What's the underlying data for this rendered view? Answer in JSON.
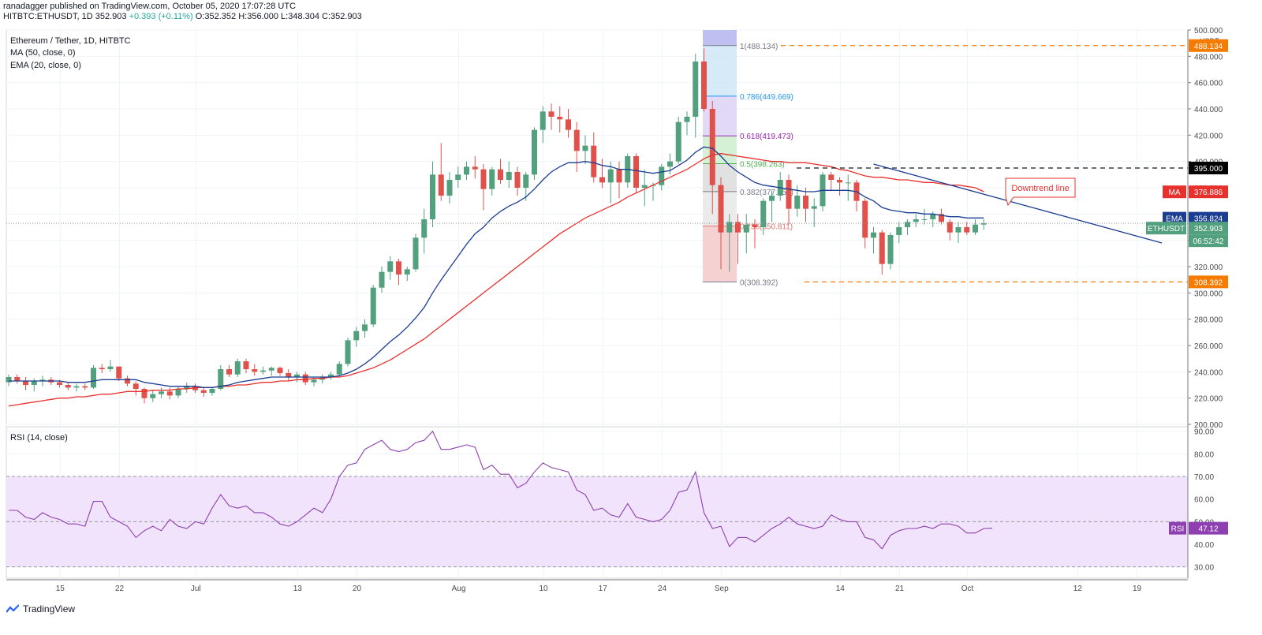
{
  "header": {
    "line1": "ranadagger published on TradingView.com, October 05, 2020 17:07:28 UTC",
    "symbol": "HITBTC:ETHUSDT, 1D",
    "price": "352.903",
    "change": "+0.393 (+0.11%)",
    "ohlc": "O:352.352 H:356.000 L:348.304 C:352.903"
  },
  "legend": {
    "title": "Ethereum / Tether, 1D, HITBTC",
    "ma": "MA (50, close, 0)",
    "ema": "EMA (20, close, 0)",
    "rsi": "RSI (14, close)"
  },
  "axis": {
    "currency": "USDT",
    "price_ticks": [
      "500.000",
      "480.000",
      "460.000",
      "440.000",
      "420.000",
      "400.000",
      "380.000",
      "360.000",
      "340.000",
      "320.000",
      "300.000",
      "280.000",
      "260.000",
      "240.000",
      "220.000",
      "200.000"
    ],
    "rsi_ticks": [
      "90.00",
      "80.00",
      "70.00",
      "60.00",
      "50.00",
      "40.00",
      "30.00"
    ],
    "date_ticks": [
      "15",
      "22",
      "Jul",
      "13",
      "20",
      "Aug",
      "10",
      "17",
      "24",
      "Sep",
      "14",
      "21",
      "Oct",
      "12",
      "19"
    ]
  },
  "price_labels": {
    "high": "488.134",
    "resistance": "395.000",
    "ma": "376.886",
    "ma_label": "MA",
    "ema": "356.824",
    "ema_label": "EMA",
    "last": "352.903",
    "last_label": "ETHUSDT",
    "countdown": "06:52:42",
    "low": "308.392",
    "rsi": "47.12",
    "rsi_label": "RSI"
  },
  "fib": [
    {
      "label": "1(488.134)",
      "value": 488.134
    },
    {
      "label": "0.786(449.669)",
      "value": 449.669
    },
    {
      "label": "0.618(419.473)",
      "value": 419.473
    },
    {
      "label": "0.5(398.263)",
      "value": 398.263
    },
    {
      "label": "0.382(377.053)",
      "value": 377.053
    },
    {
      "label": "0.236(350.811)",
      "value": 350.811
    },
    {
      "label": "0(308.392)",
      "value": 308.392
    }
  ],
  "annotation": {
    "downtrend": "Downtrend line"
  },
  "colors": {
    "up": "#53a07e",
    "down": "#e0514b",
    "ema": "#1b3d92",
    "ma": "#e8312d",
    "rsi": "#8e3fb0",
    "rsi_band": "#f1e3fb"
  },
  "footer": {
    "brand": "TradingView"
  },
  "chart_data": {
    "type": "candlestick",
    "price_range": [
      200,
      500
    ],
    "rsi_range": [
      25,
      92
    ],
    "candles": [
      [
        232,
        238,
        229,
        236
      ],
      [
        236,
        238,
        231,
        233
      ],
      [
        233,
        236,
        226,
        230
      ],
      [
        230,
        235,
        225,
        233
      ],
      [
        233,
        237,
        229,
        234
      ],
      [
        234,
        236,
        230,
        232
      ],
      [
        232,
        234,
        228,
        230
      ],
      [
        230,
        232,
        226,
        228
      ],
      [
        228,
        231,
        225,
        229
      ],
      [
        229,
        231,
        226,
        228
      ],
      [
        228,
        245,
        227,
        243
      ],
      [
        243,
        246,
        239,
        242
      ],
      [
        242,
        249,
        240,
        244
      ],
      [
        244,
        244,
        233,
        235
      ],
      [
        235,
        237,
        229,
        231
      ],
      [
        231,
        233,
        222,
        227
      ],
      [
        227,
        228,
        216,
        220
      ],
      [
        220,
        226,
        217,
        223
      ],
      [
        223,
        228,
        220,
        225
      ],
      [
        225,
        228,
        219,
        222
      ],
      [
        222,
        229,
        220,
        227
      ],
      [
        227,
        232,
        224,
        229
      ],
      [
        229,
        231,
        224,
        226
      ],
      [
        226,
        228,
        221,
        224
      ],
      [
        224,
        228,
        222,
        227
      ],
      [
        227,
        245,
        226,
        242
      ],
      [
        242,
        245,
        236,
        238
      ],
      [
        238,
        250,
        236,
        248
      ],
      [
        248,
        250,
        239,
        242
      ],
      [
        242,
        246,
        237,
        240
      ],
      [
        240,
        244,
        238,
        241
      ],
      [
        241,
        244,
        237,
        243
      ],
      [
        243,
        244,
        237,
        239
      ],
      [
        239,
        242,
        233,
        236
      ],
      [
        236,
        240,
        232,
        238
      ],
      [
        238,
        240,
        230,
        232
      ],
      [
        232,
        236,
        229,
        234
      ],
      [
        234,
        238,
        231,
        236
      ],
      [
        236,
        240,
        234,
        238
      ],
      [
        238,
        248,
        236,
        246
      ],
      [
        246,
        266,
        244,
        264
      ],
      [
        264,
        274,
        259,
        271
      ],
      [
        271,
        280,
        266,
        276
      ],
      [
        276,
        306,
        274,
        304
      ],
      [
        304,
        320,
        300,
        316
      ],
      [
        316,
        328,
        310,
        324
      ],
      [
        324,
        326,
        306,
        314
      ],
      [
        314,
        320,
        309,
        318
      ],
      [
        318,
        345,
        316,
        342
      ],
      [
        342,
        364,
        330,
        356
      ],
      [
        356,
        400,
        350,
        390
      ],
      [
        390,
        414,
        370,
        374
      ],
      [
        374,
        392,
        368,
        386
      ],
      [
        386,
        396,
        380,
        390
      ],
      [
        390,
        400,
        386,
        396
      ],
      [
        396,
        404,
        387,
        394
      ],
      [
        394,
        398,
        363,
        379
      ],
      [
        379,
        396,
        374,
        394
      ],
      [
        394,
        402,
        383,
        386
      ],
      [
        386,
        400,
        380,
        392
      ],
      [
        392,
        396,
        374,
        380
      ],
      [
        380,
        392,
        370,
        390
      ],
      [
        390,
        426,
        386,
        424
      ],
      [
        424,
        442,
        414,
        438
      ],
      [
        438,
        444,
        424,
        434
      ],
      [
        434,
        442,
        422,
        432
      ],
      [
        432,
        440,
        418,
        424
      ],
      [
        424,
        430,
        392,
        408
      ],
      [
        408,
        420,
        398,
        412
      ],
      [
        412,
        422,
        384,
        388
      ],
      [
        388,
        402,
        380,
        384
      ],
      [
        384,
        400,
        368,
        394
      ],
      [
        394,
        400,
        372,
        384
      ],
      [
        384,
        406,
        380,
        404
      ],
      [
        404,
        406,
        376,
        380
      ],
      [
        380,
        394,
        366,
        382
      ],
      [
        382,
        384,
        370,
        382
      ],
      [
        382,
        398,
        378,
        396
      ],
      [
        396,
        406,
        390,
        400
      ],
      [
        400,
        434,
        398,
        430
      ],
      [
        430,
        438,
        420,
        434
      ],
      [
        434,
        482,
        418,
        476
      ],
      [
        476,
        486,
        438,
        440
      ],
      [
        440,
        446,
        360,
        382
      ],
      [
        382,
        388,
        318,
        346
      ],
      [
        346,
        360,
        316,
        354
      ],
      [
        354,
        360,
        322,
        346
      ],
      [
        346,
        360,
        330,
        352
      ],
      [
        352,
        356,
        334,
        350
      ],
      [
        350,
        372,
        344,
        370
      ],
      [
        370,
        378,
        354,
        374
      ],
      [
        374,
        392,
        370,
        386
      ],
      [
        386,
        390,
        352,
        364
      ],
      [
        364,
        382,
        358,
        374
      ],
      [
        374,
        380,
        354,
        364
      ],
      [
        364,
        372,
        350,
        366
      ],
      [
        366,
        392,
        362,
        390
      ],
      [
        390,
        392,
        378,
        386
      ],
      [
        386,
        388,
        374,
        384
      ],
      [
        384,
        390,
        370,
        384
      ],
      [
        384,
        386,
        362,
        370
      ],
      [
        370,
        372,
        334,
        342
      ],
      [
        342,
        350,
        330,
        346
      ],
      [
        346,
        348,
        314,
        322
      ],
      [
        322,
        346,
        318,
        344
      ],
      [
        344,
        354,
        338,
        350
      ],
      [
        350,
        356,
        344,
        354
      ],
      [
        354,
        360,
        350,
        356
      ],
      [
        356,
        364,
        352,
        356
      ],
      [
        356,
        362,
        350,
        360
      ],
      [
        360,
        364,
        352,
        354
      ],
      [
        354,
        356,
        340,
        346
      ],
      [
        346,
        354,
        338,
        350
      ],
      [
        350,
        354,
        344,
        346
      ],
      [
        346,
        356,
        344,
        352
      ],
      [
        352,
        356,
        348,
        353
      ]
    ],
    "ema20": [
      233,
      233,
      233,
      233,
      233,
      233,
      233,
      232,
      232,
      232,
      233,
      234,
      234,
      234,
      234,
      234,
      232,
      231,
      230,
      229,
      229,
      229,
      229,
      228,
      228,
      229,
      230,
      232,
      233,
      234,
      235,
      236,
      236,
      236,
      236,
      236,
      236,
      236,
      236,
      237,
      239,
      242,
      246,
      251,
      257,
      263,
      268,
      274,
      281,
      289,
      300,
      310,
      319,
      328,
      337,
      345,
      350,
      357,
      362,
      366,
      369,
      373,
      379,
      386,
      392,
      396,
      399,
      399,
      400,
      399,
      397,
      396,
      394,
      394,
      393,
      392,
      391,
      392,
      393,
      397,
      401,
      407,
      411,
      410,
      404,
      397,
      392,
      388,
      384,
      382,
      381,
      380,
      379,
      378,
      377,
      377,
      378,
      378,
      378,
      378,
      377,
      373,
      370,
      365,
      363,
      362,
      361,
      361,
      360,
      360,
      359,
      358,
      358,
      357,
      357,
      357
    ],
    "ma50": [
      214,
      215,
      216,
      217,
      218,
      219,
      220,
      220,
      221,
      221,
      222,
      223,
      223,
      224,
      225,
      225,
      225,
      226,
      226,
      226,
      227,
      227,
      228,
      228,
      228,
      229,
      229,
      230,
      230,
      231,
      232,
      232,
      233,
      233,
      234,
      234,
      235,
      235,
      236,
      236,
      237,
      239,
      241,
      243,
      246,
      249,
      253,
      257,
      261,
      265,
      270,
      275,
      280,
      285,
      290,
      295,
      300,
      305,
      310,
      315,
      320,
      325,
      330,
      335,
      340,
      345,
      349,
      353,
      357,
      360,
      363,
      366,
      369,
      373,
      376,
      379,
      382,
      385,
      388,
      391,
      394,
      398,
      402,
      405,
      406,
      405,
      404,
      403,
      402,
      401,
      400,
      400,
      399,
      399,
      399,
      398,
      397,
      396,
      394,
      393,
      391,
      389,
      388,
      388,
      387,
      386,
      386,
      385,
      384,
      384,
      383,
      382,
      382,
      381,
      380,
      377
    ],
    "rsi": [
      55,
      55,
      52,
      51,
      54,
      52,
      51,
      49,
      49,
      48,
      59,
      59,
      52,
      50,
      48,
      43,
      46,
      48,
      46,
      51,
      48,
      47,
      50,
      49,
      56,
      62,
      57,
      56,
      57,
      54,
      54,
      52,
      49,
      48,
      50,
      53,
      56,
      54,
      60,
      70,
      75,
      76,
      82,
      84,
      86,
      82,
      81,
      82,
      85,
      86,
      90,
      82,
      82,
      83,
      84,
      83,
      73,
      75,
      71,
      71,
      65,
      67,
      72,
      76,
      74,
      73,
      72,
      64,
      62,
      55,
      56,
      53,
      52,
      58,
      52,
      51,
      50,
      51,
      55,
      63,
      64,
      72,
      54,
      47,
      48,
      39,
      43,
      43,
      41,
      44,
      47,
      49,
      52,
      49,
      48,
      47,
      48,
      53,
      51,
      50,
      50,
      43,
      42,
      38,
      44,
      46,
      47,
      47,
      48,
      47,
      49,
      49,
      48,
      45,
      45,
      47,
      47.12
    ],
    "downtrend_line": {
      "from": [
        102,
        398
      ],
      "to": [
        136,
        338
      ]
    }
  }
}
